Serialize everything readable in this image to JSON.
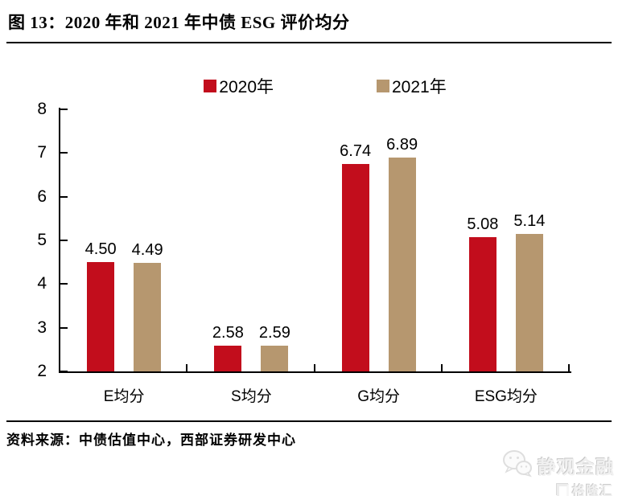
{
  "figure": {
    "title": "图 13：2020 年和 2021 年中债 ESG 评价均分",
    "source": "资料来源：中债估值中心，西部证券研发中心"
  },
  "chart_data": {
    "type": "bar",
    "title": "2020 年和 2021 年中债 ESG 评价均分",
    "categories": [
      "E均分",
      "S均分",
      "G均分",
      "ESG均分"
    ],
    "series": [
      {
        "name": "2020年",
        "color": "#c20d1c",
        "values": [
          4.5,
          2.58,
          6.74,
          5.08
        ]
      },
      {
        "name": "2021年",
        "color": "#b6976f",
        "values": [
          4.49,
          2.59,
          6.89,
          5.14
        ]
      }
    ],
    "value_labels": [
      "4.50",
      "4.49",
      "2.58",
      "2.59",
      "6.74",
      "6.89",
      "5.08",
      "5.14"
    ],
    "xlabel": "",
    "ylabel": "",
    "ylim": [
      2,
      8
    ],
    "yticks": [
      2,
      3,
      4,
      5,
      6,
      7,
      8
    ],
    "grid": false,
    "legend_position": "top"
  },
  "watermark": {
    "wechat_account": "静观金融",
    "platform": "格隆汇"
  }
}
